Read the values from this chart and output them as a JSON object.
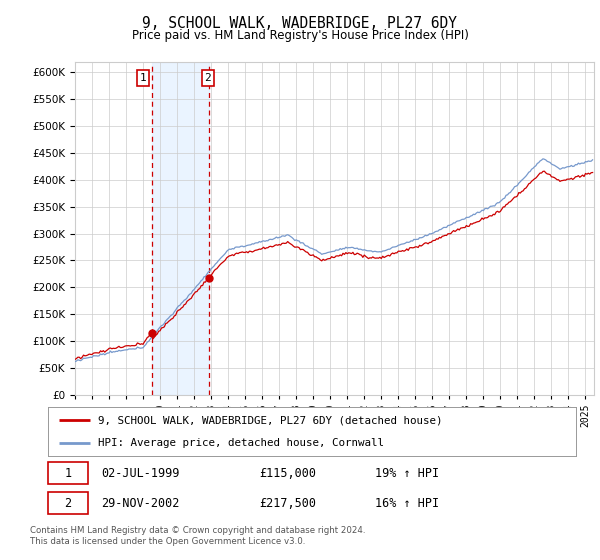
{
  "title": "9, SCHOOL WALK, WADEBRIDGE, PL27 6DY",
  "subtitle": "Price paid vs. HM Land Registry's House Price Index (HPI)",
  "ylim": [
    0,
    620000
  ],
  "yticks": [
    0,
    50000,
    100000,
    150000,
    200000,
    250000,
    300000,
    350000,
    400000,
    450000,
    500000,
    550000,
    600000
  ],
  "hpi_color": "#7799cc",
  "price_color": "#cc0000",
  "background_color": "#ffffff",
  "grid_color": "#cccccc",
  "shade_color": "#ddeeff",
  "t1_year": 1999.5,
  "t2_year": 2002.9,
  "t1_price": 115000,
  "t2_price": 217500,
  "transaction1_date": "02-JUL-1999",
  "transaction1_price": 115000,
  "transaction1_hpi": "19% ↑ HPI",
  "transaction2_date": "29-NOV-2002",
  "transaction2_price": 217500,
  "transaction2_hpi": "16% ↑ HPI",
  "legend_line1": "9, SCHOOL WALK, WADEBRIDGE, PL27 6DY (detached house)",
  "legend_line2": "HPI: Average price, detached house, Cornwall",
  "footnote": "Contains HM Land Registry data © Crown copyright and database right 2024.\nThis data is licensed under the Open Government Licence v3.0.",
  "xmin": 1995,
  "xmax": 2025.5
}
